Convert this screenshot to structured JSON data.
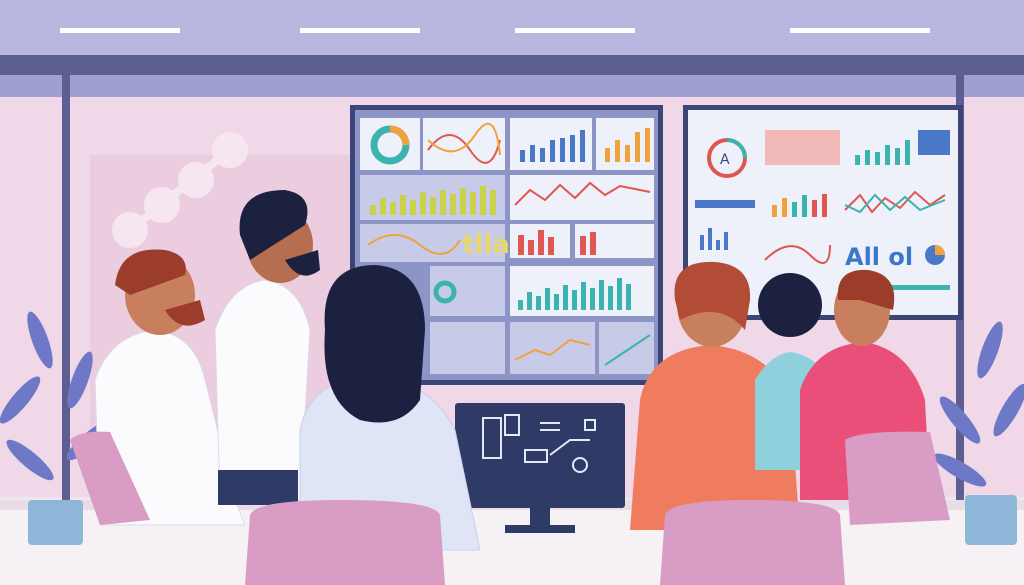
{
  "screens": {
    "left_big_text": "tlla",
    "right_big_text": "All ol",
    "right_gauge_letter": "A"
  },
  "colors": {
    "ceiling": "#b9b6df",
    "wall": "#f1d8e8",
    "screen_frame": "#3b4676",
    "panel": "#eef0fa",
    "accent_blue": "#4a78c9",
    "accent_teal": "#3bb3b0",
    "accent_orange": "#f0a23c",
    "accent_red": "#e05650",
    "chair": "#d99cc4",
    "table": "#f6f1f5"
  },
  "icons": [
    "plant-icon",
    "monitor-icon",
    "flowchart-icon"
  ]
}
